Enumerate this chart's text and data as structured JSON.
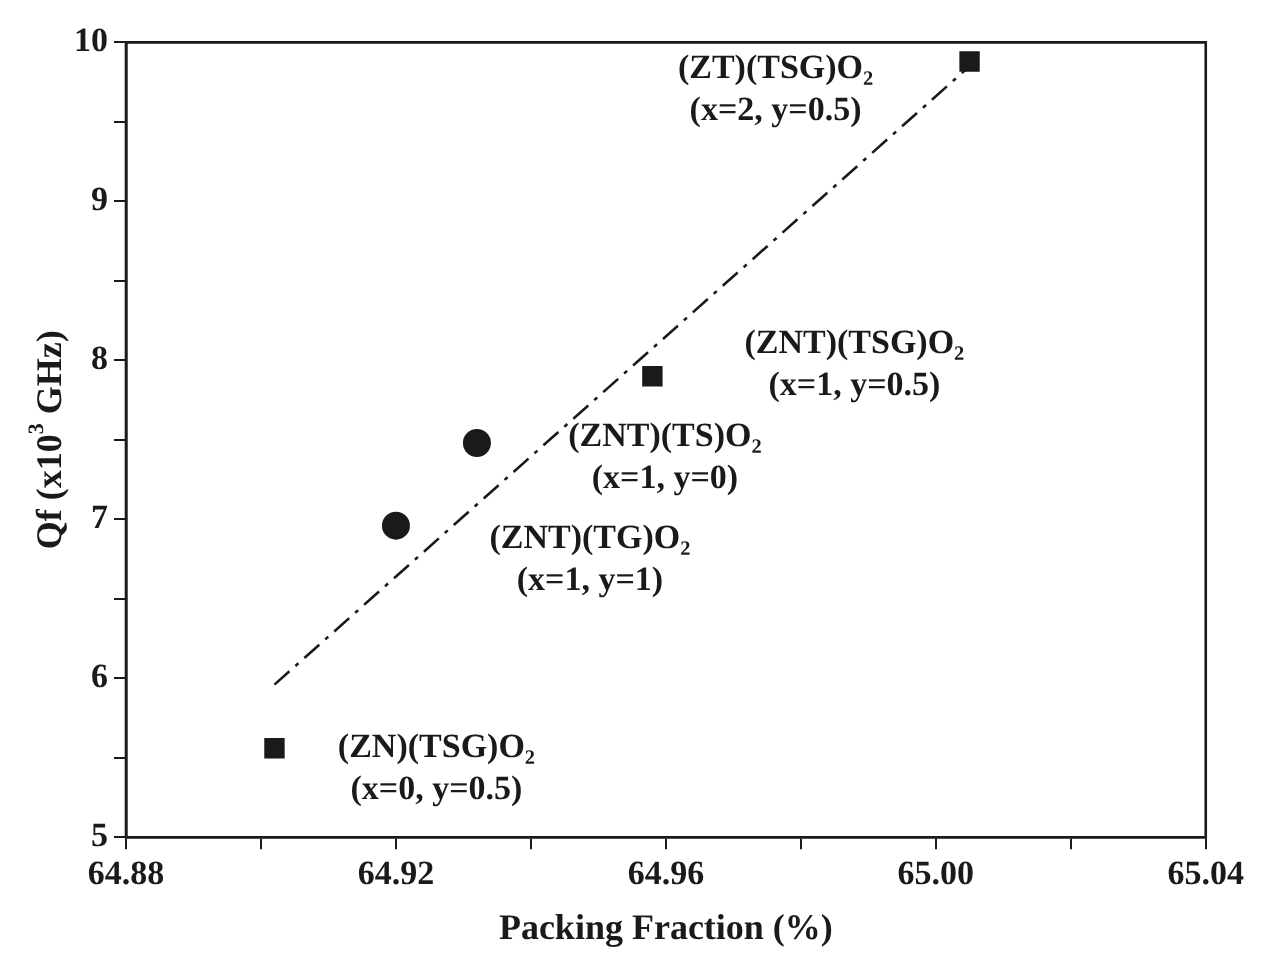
{
  "chart_data": {
    "type": "scatter",
    "xlabel": "Packing Fraction (%)",
    "ylabel": "Qf (x10$^{3}$ GHz)",
    "series": [
      {
        "color": "#1a1a1a",
        "marker": "square",
        "x": [
          64.902,
          64.958,
          65.005
        ],
        "values": [
          5.56,
          7.9,
          9.88
        ]
      },
      {
        "color": "#1a1a1a",
        "marker": "circle",
        "x": [
          64.92,
          64.932
        ],
        "values": [
          6.96,
          7.48
        ]
      },
      {
        "type": "line",
        "color": "#1a1a1a",
        "line_style": "dashed",
        "marker": "none",
        "x": [
          64.902,
          65.005
        ],
        "values": [
          5.96,
          9.85
        ]
      }
    ],
    "xlim": [
      64.88,
      65.04
    ],
    "ylim": [
      5,
      10
    ],
    "xticks": [
      64.88,
      {
        "value": 64.9,
        "label": null
      },
      64.92,
      {
        "value": 64.94,
        "label": null
      },
      64.96,
      {
        "value": 64.98,
        "label": null
      },
      {
        "value": 65,
        "label": "65.00"
      },
      {
        "value": 65.02,
        "label": null
      },
      65.04
    ],
    "yticks": [
      5,
      {
        "value": 5.5,
        "label": null
      },
      6,
      {
        "value": 6.5,
        "label": null
      },
      7,
      {
        "value": 7.5,
        "label": null
      },
      8,
      {
        "value": 8.5,
        "label": null
      },
      9,
      {
        "value": 9.5,
        "label": null
      },
      10
    ],
    "grid": false,
    "legend": false,
    "annotations": [
      {
        "text": "(ZT)(TSG)O₂\n(x=2, y=0.5)",
        "x": 65.005,
        "y": 9.88
      },
      {
        "text": "(ZNT)(TSG)O₂\n(x=1, y=0.5)",
        "x": 64.958,
        "y": 7.9
      },
      {
        "text": "(ZNT)(TS)O₂\n(x=1, y=0)",
        "x": 64.932,
        "y": 7.48
      },
      {
        "text": "(ZNT)(TG)O₂\n(x=1, y=1)",
        "x": 64.92,
        "y": 6.96
      },
      {
        "text": "(ZN)(TSG)O₂\n(x=0, y=0.5)",
        "x": 64.902,
        "y": 5.56
      }
    ]
  }
}
